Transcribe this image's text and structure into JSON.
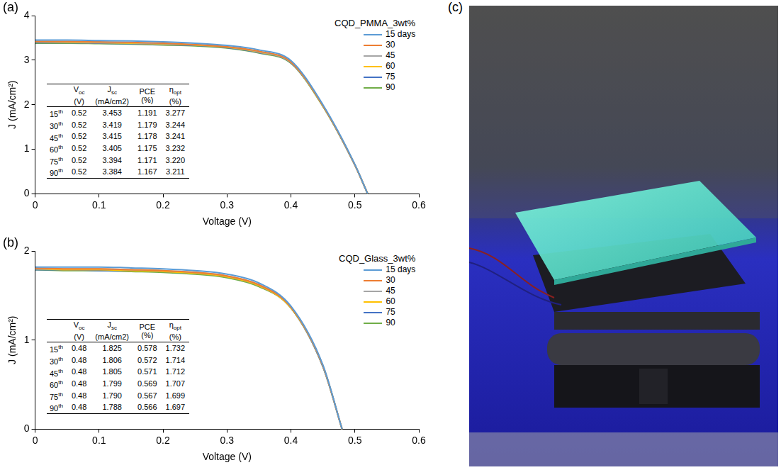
{
  "chart_data": [
    {
      "panel": "(a)",
      "type": "line",
      "legend_title": "CQD_PMMA_3wt%",
      "x_label": "Voltage (V)",
      "y_label": "J (mA/cm²)",
      "x": [
        0,
        0.05,
        0.1,
        0.15,
        0.2,
        0.25,
        0.3,
        0.35,
        0.4,
        0.45,
        0.5,
        0.52
      ],
      "series": [
        {
          "name": "15 days",
          "color": "#5b9bd5",
          "values": [
            3.45,
            3.45,
            3.44,
            3.43,
            3.41,
            3.38,
            3.33,
            3.23,
            2.99,
            2.0,
            0.66,
            0
          ]
        },
        {
          "name": "30",
          "color": "#ed7d31",
          "values": [
            3.42,
            3.42,
            3.41,
            3.4,
            3.38,
            3.35,
            3.3,
            3.2,
            2.96,
            1.98,
            0.65,
            0
          ]
        },
        {
          "name": "45",
          "color": "#a5a5a5",
          "values": [
            3.42,
            3.41,
            3.4,
            3.39,
            3.37,
            3.35,
            3.3,
            3.19,
            2.95,
            1.98,
            0.65,
            0
          ]
        },
        {
          "name": "60",
          "color": "#ffc000",
          "values": [
            3.41,
            3.4,
            3.39,
            3.38,
            3.36,
            3.34,
            3.29,
            3.18,
            2.95,
            1.97,
            0.65,
            0
          ]
        },
        {
          "name": "75",
          "color": "#4472c4",
          "values": [
            3.39,
            3.39,
            3.38,
            3.37,
            3.35,
            3.33,
            3.28,
            3.17,
            2.94,
            1.97,
            0.64,
            0
          ]
        },
        {
          "name": "90",
          "color": "#70ad47",
          "values": [
            3.38,
            3.38,
            3.37,
            3.36,
            3.34,
            3.32,
            3.27,
            3.16,
            2.93,
            1.96,
            0.64,
            0
          ]
        }
      ],
      "xlim": [
        0,
        0.6
      ],
      "xticks": [
        0,
        0.1,
        0.2,
        0.3,
        0.4,
        0.5,
        0.6
      ],
      "ylim": [
        0,
        4
      ],
      "yticks": [
        0,
        1,
        2,
        3,
        4
      ],
      "grid": false,
      "legend": "top right",
      "table": {
        "header": [
          {
            "symbol": "V",
            "subscript": "oc",
            "unit": "(V)"
          },
          {
            "symbol": "J",
            "subscript": "sc",
            "unit": "(mA/cm2)"
          },
          {
            "symbol": "PCE",
            "unit": "(%)"
          },
          {
            "symbol": "η",
            "subscript": "opt",
            "unit": "(%)"
          }
        ],
        "rows": [
          [
            "15th",
            "0.52",
            "3.453",
            "1.191",
            "3.277"
          ],
          [
            "30th",
            "0.52",
            "3.419",
            "1.179",
            "3.244"
          ],
          [
            "45th",
            "0.52",
            "3.415",
            "1.178",
            "3.241"
          ],
          [
            "60th",
            "0.52",
            "3.405",
            "1.175",
            "3.232"
          ],
          [
            "75th",
            "0.52",
            "3.394",
            "1.171",
            "3.220"
          ],
          [
            "90th",
            "0.52",
            "3.384",
            "1.167",
            "3.211"
          ]
        ]
      }
    },
    {
      "panel": "(b)",
      "type": "line",
      "legend_title": "CQD_Glass_3wt%",
      "x_label": "Voltage (V)",
      "y_label": "J (mA/cm²)",
      "x": [
        0,
        0.05,
        0.1,
        0.15,
        0.2,
        0.25,
        0.3,
        0.35,
        0.4,
        0.45,
        0.48
      ],
      "series": [
        {
          "name": "15 days",
          "color": "#5b9bd5",
          "values": [
            1.82,
            1.82,
            1.82,
            1.81,
            1.8,
            1.78,
            1.74,
            1.64,
            1.38,
            0.72,
            0
          ]
        },
        {
          "name": "30",
          "color": "#ed7d31",
          "values": [
            1.81,
            1.8,
            1.8,
            1.79,
            1.78,
            1.76,
            1.72,
            1.62,
            1.37,
            0.71,
            0
          ]
        },
        {
          "name": "45",
          "color": "#a5a5a5",
          "values": [
            1.8,
            1.8,
            1.8,
            1.79,
            1.78,
            1.76,
            1.72,
            1.62,
            1.37,
            0.71,
            0
          ]
        },
        {
          "name": "60",
          "color": "#ffc000",
          "values": [
            1.8,
            1.79,
            1.79,
            1.78,
            1.77,
            1.75,
            1.71,
            1.61,
            1.36,
            0.71,
            0
          ]
        },
        {
          "name": "75",
          "color": "#4472c4",
          "values": [
            1.79,
            1.79,
            1.78,
            1.78,
            1.77,
            1.75,
            1.71,
            1.61,
            1.36,
            0.7,
            0
          ]
        },
        {
          "name": "90",
          "color": "#70ad47",
          "values": [
            1.79,
            1.78,
            1.78,
            1.77,
            1.76,
            1.74,
            1.7,
            1.6,
            1.36,
            0.7,
            0
          ]
        }
      ],
      "xlim": [
        0,
        0.6
      ],
      "xticks": [
        0,
        0.1,
        0.2,
        0.3,
        0.4,
        0.5,
        0.6
      ],
      "ylim": [
        0,
        2
      ],
      "yticks": [
        0,
        1,
        2
      ],
      "grid": false,
      "legend": "top right",
      "table": {
        "header": [
          {
            "symbol": "V",
            "subscript": "oc",
            "unit": "(V)"
          },
          {
            "symbol": "J",
            "subscript": "sc",
            "unit": "(mA/cm2)"
          },
          {
            "symbol": "PCE",
            "unit": "(%)"
          },
          {
            "symbol": "η",
            "subscript": "opt",
            "unit": "(%)"
          }
        ],
        "rows": [
          [
            "15th",
            "0.48",
            "1.825",
            "0.578",
            "1.732"
          ],
          [
            "30th",
            "0.48",
            "1.806",
            "0.572",
            "1.714"
          ],
          [
            "45th",
            "0.48",
            "1.805",
            "0.571",
            "1.712"
          ],
          [
            "60th",
            "0.48",
            "1.799",
            "0.569",
            "1.707"
          ],
          [
            "75th",
            "0.48",
            "1.790",
            "0.567",
            "1.699"
          ],
          [
            "90th",
            "0.48",
            "1.788",
            "0.566",
            "1.697"
          ]
        ]
      }
    }
  ],
  "photo_panel": "(c)"
}
